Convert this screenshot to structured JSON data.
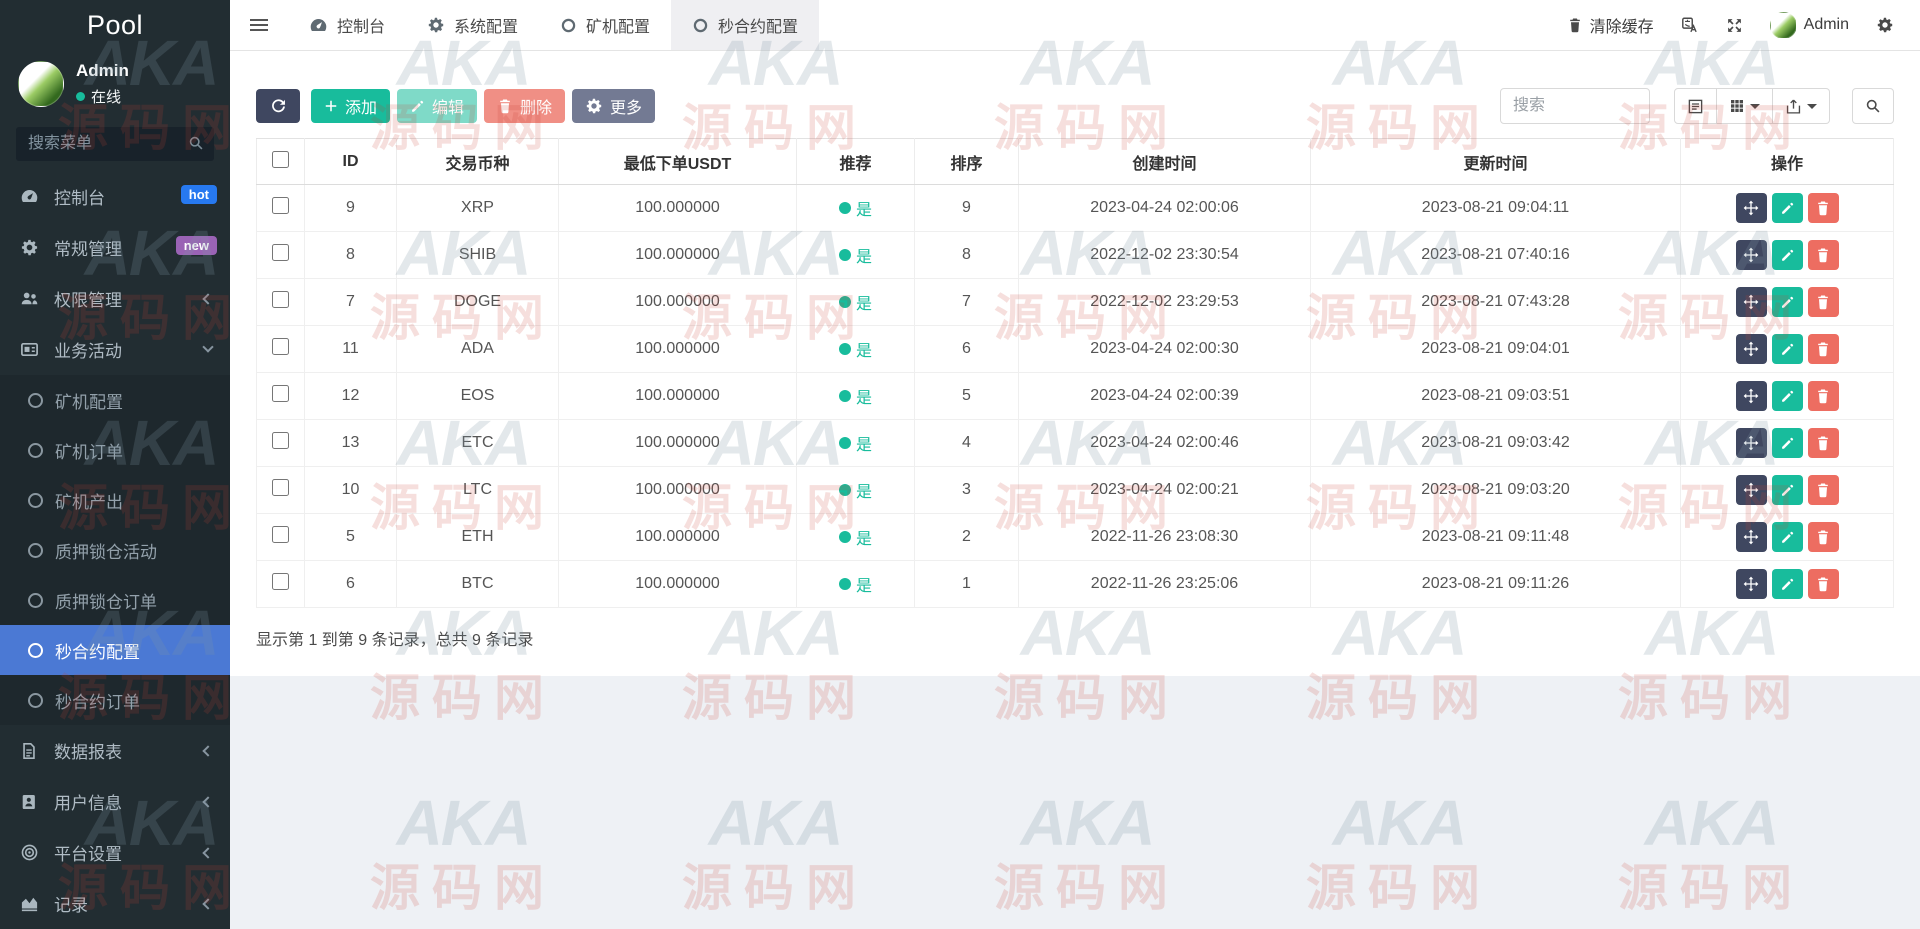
{
  "colors": {
    "accent_green": "#18bc9c",
    "accent_red": "#ed6d61",
    "dark_button": "#3f4760",
    "more_button": "#737a93",
    "active_menu_blue": "#4b79d4",
    "hot_badge": "#2779f0",
    "new_badge": "#9a63b5",
    "sidebar_bg": "#222d32"
  },
  "sidebar": {
    "logo": "Pool",
    "user": {
      "name": "Admin",
      "status": "在线"
    },
    "search_placeholder": "搜索菜单",
    "menu": [
      {
        "label": "控制台",
        "icon": "dashboard-icon",
        "badge": "hot",
        "badge_class": "hot"
      },
      {
        "label": "常规管理",
        "icon": "gears-icon",
        "badge": "new",
        "badge_class": "new"
      },
      {
        "label": "权限管理",
        "icon": "users-icon",
        "chevron": "left"
      },
      {
        "label": "业务活动",
        "icon": "business-icon",
        "chevron": "down",
        "expanded": true,
        "children": [
          {
            "label": "矿机配置"
          },
          {
            "label": "矿机订单"
          },
          {
            "label": "矿机产出"
          },
          {
            "label": "质押锁仓活动"
          },
          {
            "label": "质押锁仓订单"
          },
          {
            "label": "秒合约配置",
            "active": true
          },
          {
            "label": "秒合约订单"
          }
        ]
      },
      {
        "label": "数据报表",
        "icon": "report-icon",
        "chevron": "left"
      },
      {
        "label": "用户信息",
        "icon": "userinfo-icon",
        "chevron": "left"
      },
      {
        "label": "平台设置",
        "icon": "platform-icon",
        "chevron": "left"
      },
      {
        "label": "记录",
        "icon": "record-icon",
        "chevron": "left"
      }
    ]
  },
  "topnav": {
    "tabs": [
      {
        "label": "控制台",
        "icon": "dashboard-icon"
      },
      {
        "label": "系统配置",
        "icon": "gear-icon"
      },
      {
        "label": "矿机配置",
        "icon": "circle-icon"
      },
      {
        "label": "秒合约配置",
        "icon": "circle-icon",
        "active": true
      }
    ],
    "actions": {
      "clear_cache": "清除缓存",
      "username": "Admin"
    }
  },
  "toolbar": {
    "add_label": "添加",
    "edit_label": "编辑",
    "delete_label": "删除",
    "more_label": "更多",
    "search_placeholder": "搜索"
  },
  "table": {
    "headers": [
      "ID",
      "交易币种",
      "最低下单USDT",
      "推荐",
      "排序",
      "创建时间",
      "更新时间",
      "操作"
    ],
    "rows": [
      {
        "id": "9",
        "coin": "XRP",
        "min_usdt": "100.000000",
        "recommend": "是",
        "sort": "9",
        "created": "2023-04-24 02:00:06",
        "updated": "2023-08-21 09:04:11"
      },
      {
        "id": "8",
        "coin": "SHIB",
        "min_usdt": "100.000000",
        "recommend": "是",
        "sort": "8",
        "created": "2022-12-02 23:30:54",
        "updated": "2023-08-21 07:40:16"
      },
      {
        "id": "7",
        "coin": "DOGE",
        "min_usdt": "100.000000",
        "recommend": "是",
        "sort": "7",
        "created": "2022-12-02 23:29:53",
        "updated": "2023-08-21 07:43:28"
      },
      {
        "id": "11",
        "coin": "ADA",
        "min_usdt": "100.000000",
        "recommend": "是",
        "sort": "6",
        "created": "2023-04-24 02:00:30",
        "updated": "2023-08-21 09:04:01"
      },
      {
        "id": "12",
        "coin": "EOS",
        "min_usdt": "100.000000",
        "recommend": "是",
        "sort": "5",
        "created": "2023-04-24 02:00:39",
        "updated": "2023-08-21 09:03:51"
      },
      {
        "id": "13",
        "coin": "ETC",
        "min_usdt": "100.000000",
        "recommend": "是",
        "sort": "4",
        "created": "2023-04-24 02:00:46",
        "updated": "2023-08-21 09:03:42"
      },
      {
        "id": "10",
        "coin": "LTC",
        "min_usdt": "100.000000",
        "recommend": "是",
        "sort": "3",
        "created": "2023-04-24 02:00:21",
        "updated": "2023-08-21 09:03:20"
      },
      {
        "id": "5",
        "coin": "ETH",
        "min_usdt": "100.000000",
        "recommend": "是",
        "sort": "2",
        "created": "2022-11-26 23:08:30",
        "updated": "2023-08-21 09:11:48"
      },
      {
        "id": "6",
        "coin": "BTC",
        "min_usdt": "100.000000",
        "recommend": "是",
        "sort": "1",
        "created": "2022-11-26 23:25:06",
        "updated": "2023-08-21 09:11:26"
      }
    ]
  },
  "footer": {
    "summary": "显示第 1 到第 9 条记录，总共 9 条记录"
  },
  "watermark": {
    "brand": "AKA",
    "text": "源码网"
  }
}
